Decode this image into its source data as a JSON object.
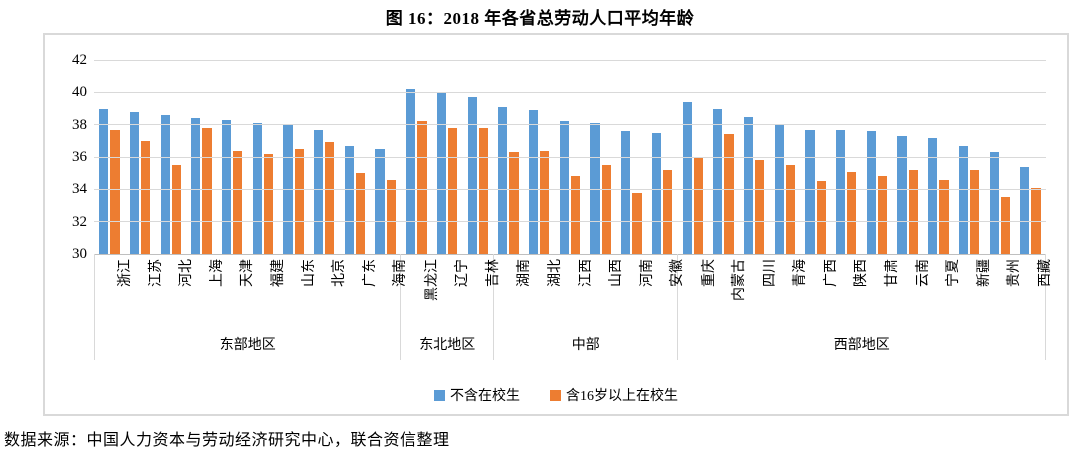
{
  "title": "图 16：2018 年各省总劳动人口平均年龄",
  "source_note": "数据来源：中国人力资本与劳动经济研究中心，联合资信整理",
  "colors": {
    "series_blue": "#5B9BD5",
    "series_orange": "#ED7D31",
    "gridline": "#D9D9D9",
    "axis_line": "#BFBFBF",
    "border": "#D9D9D9"
  },
  "legend": [
    {
      "label": "不含在校生",
      "color": "#5B9BD5"
    },
    {
      "label": "含16岁以上在校生",
      "color": "#ED7D31"
    }
  ],
  "chart_data": {
    "type": "bar",
    "title": "图 16：2018 年各省总劳动人口平均年龄",
    "xlabel": "",
    "ylabel": "",
    "ylim": [
      30,
      42
    ],
    "yticks": [
      42,
      40,
      38,
      36,
      34,
      32,
      30
    ],
    "grid": true,
    "legend_position": "bottom",
    "categories": [
      "浙江",
      "江苏",
      "河北",
      "上海",
      "天津",
      "福建",
      "山东",
      "北京",
      "广东",
      "海南",
      "黑龙江",
      "辽宁",
      "吉林",
      "湖南",
      "湖北",
      "江西",
      "山西",
      "河南",
      "安徽",
      "重庆",
      "内蒙古",
      "四川",
      "青海",
      "广西",
      "陕西",
      "甘肃",
      "云南",
      "宁夏",
      "新疆",
      "贵州",
      "西藏"
    ],
    "regions": [
      {
        "label": "东部地区",
        "count": 10
      },
      {
        "label": "东北地区",
        "count": 3
      },
      {
        "label": "中部",
        "count": 6
      },
      {
        "label": "西部地区",
        "count": 12
      }
    ],
    "series": [
      {
        "name": "不含在校生",
        "color": "#5B9BD5",
        "values": [
          39.0,
          38.8,
          38.6,
          38.4,
          38.3,
          38.1,
          38.0,
          37.7,
          36.7,
          36.5,
          40.2,
          40.0,
          39.7,
          39.1,
          38.9,
          38.2,
          38.1,
          37.6,
          37.5,
          39.4,
          39.0,
          38.5,
          38.0,
          37.7,
          37.7,
          37.6,
          37.3,
          37.2,
          36.7,
          36.3,
          35.4
        ]
      },
      {
        "name": "含16岁以上在校生",
        "color": "#ED7D31",
        "values": [
          37.7,
          37.0,
          35.5,
          37.8,
          36.4,
          36.2,
          36.5,
          36.9,
          35.0,
          34.6,
          38.2,
          37.8,
          37.8,
          36.3,
          36.4,
          34.8,
          35.5,
          33.8,
          35.2,
          36.0,
          37.4,
          35.8,
          35.5,
          34.5,
          35.1,
          34.8,
          35.2,
          34.6,
          35.2,
          33.5,
          34.1
        ]
      }
    ]
  }
}
